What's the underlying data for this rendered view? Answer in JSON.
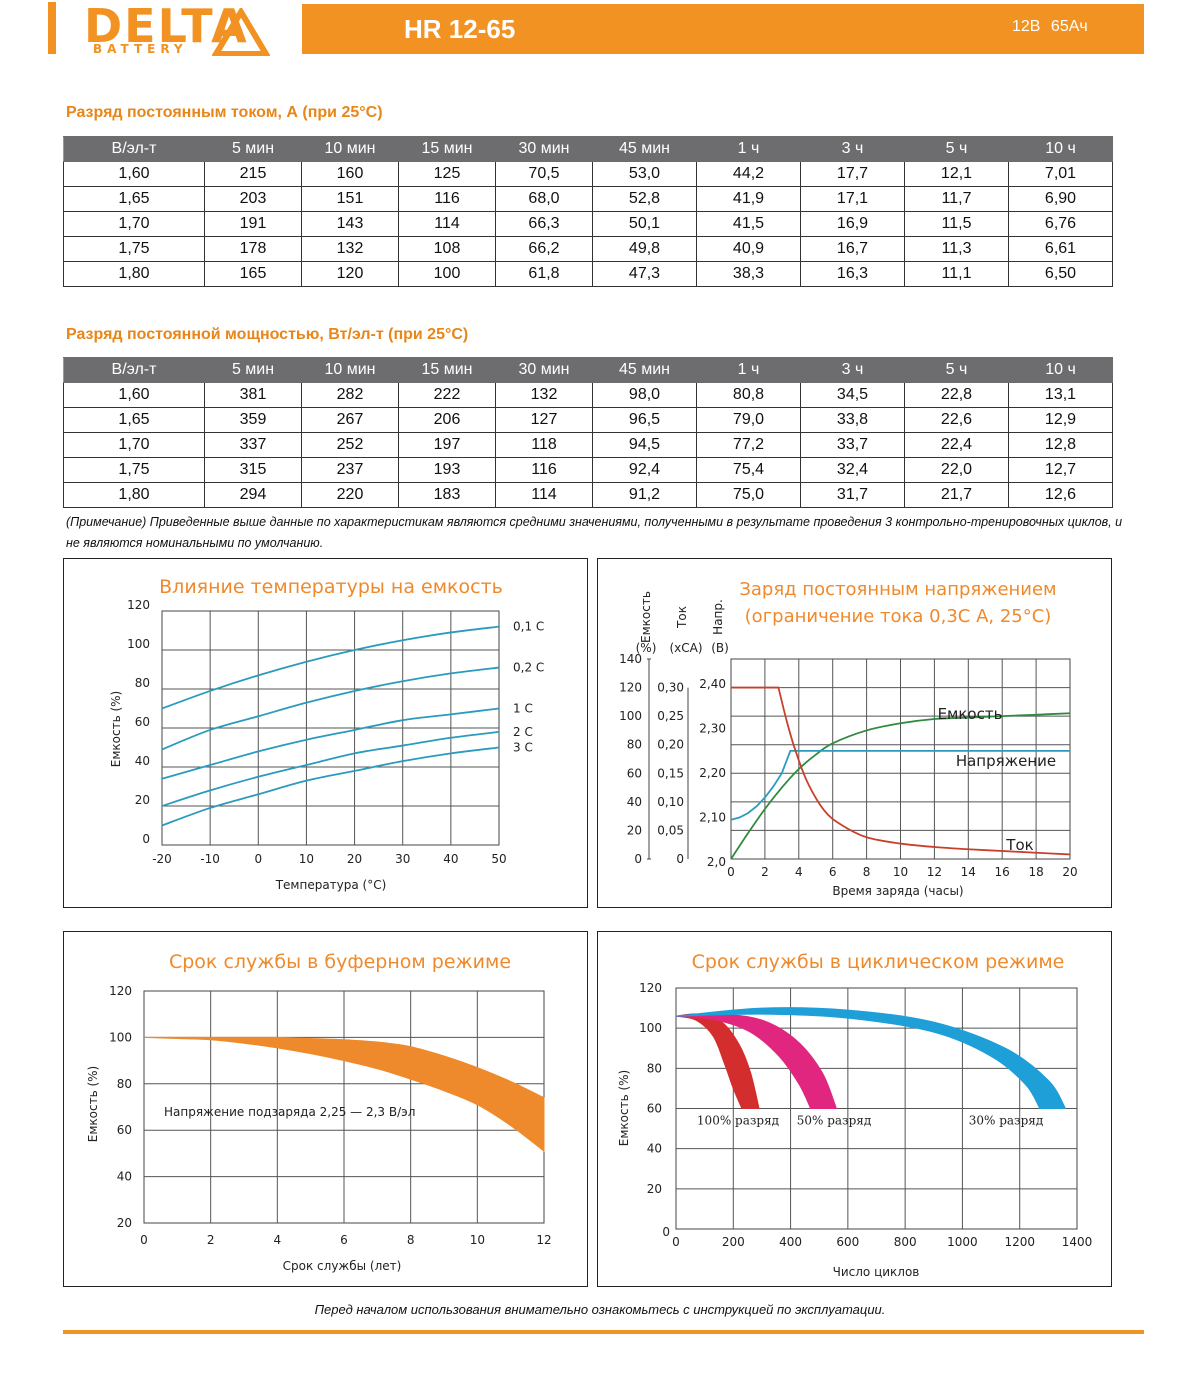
{
  "header": {
    "brand": "DELTA",
    "brand_sub": "BATTERY",
    "model": "HR 12-65",
    "spec": "12В  65Ач",
    "accent_color": "#f29222"
  },
  "table_current": {
    "title": "Разряд постоянным током, А (при 25°С)",
    "headers": [
      "В/эл-т",
      "5 мин",
      "10 мин",
      "15 мин",
      "30 мин",
      "45 мин",
      "1 ч",
      "3 ч",
      "5 ч",
      "10 ч"
    ],
    "rows": [
      [
        "1,60",
        "215",
        "160",
        "125",
        "70,5",
        "53,0",
        "44,2",
        "17,7",
        "12,1",
        "7,01"
      ],
      [
        "1,65",
        "203",
        "151",
        "116",
        "68,0",
        "52,8",
        "41,9",
        "17,1",
        "11,7",
        "6,90"
      ],
      [
        "1,70",
        "191",
        "143",
        "114",
        "66,3",
        "50,1",
        "41,5",
        "16,9",
        "11,5",
        "6,76"
      ],
      [
        "1,75",
        "178",
        "132",
        "108",
        "66,2",
        "49,8",
        "40,9",
        "16,7",
        "11,3",
        "6,61"
      ],
      [
        "1,80",
        "165",
        "120",
        "100",
        "61,8",
        "47,3",
        "38,3",
        "16,3",
        "11,1",
        "6,50"
      ]
    ]
  },
  "table_power": {
    "title": "Разряд постоянной мощностью, Вт/эл-т (при 25°С)",
    "headers": [
      "В/эл-т",
      "5 мин",
      "10 мин",
      "15 мин",
      "30 мин",
      "45 мин",
      "1 ч",
      "3 ч",
      "5 ч",
      "10 ч"
    ],
    "rows": [
      [
        "1,60",
        "381",
        "282",
        "222",
        "132",
        "98,0",
        "80,8",
        "34,5",
        "22,8",
        "13,1"
      ],
      [
        "1,65",
        "359",
        "267",
        "206",
        "127",
        "96,5",
        "79,0",
        "33,8",
        "22,6",
        "12,9"
      ],
      [
        "1,70",
        "337",
        "252",
        "197",
        "118",
        "94,5",
        "77,2",
        "33,7",
        "22,4",
        "12,8"
      ],
      [
        "1,75",
        "315",
        "237",
        "193",
        "116",
        "92,4",
        "75,4",
        "32,4",
        "22,0",
        "12,7"
      ],
      [
        "1,80",
        "294",
        "220",
        "183",
        "114",
        "91,2",
        "75,0",
        "31,7",
        "21,7",
        "12,6"
      ]
    ]
  },
  "note": "(Примечание) Приведенные выше данные по характеристикам являются средними значениями, полученными в результате проведения 3 контрольно-тренировочных циклов, и не являются номинальными по умолчанию.",
  "chart_data": [
    {
      "type": "line",
      "title": "Влияние температуры на емкость",
      "xlabel": "Температура (°С)",
      "ylabel": "Емкость (%)",
      "x_ticks": [
        "-20",
        "-10",
        "0",
        "10",
        "20",
        "30",
        "40",
        "50"
      ],
      "y_ticks": [
        "0",
        "20",
        "40",
        "60",
        "80",
        "100",
        "120"
      ],
      "xlim": [
        -20,
        50
      ],
      "ylim": [
        0,
        120
      ],
      "grid": true,
      "color": "#2a9bbf",
      "x": [
        -20,
        -10,
        0,
        10,
        20,
        30,
        40,
        50
      ],
      "series": [
        {
          "name": "0,1 С",
          "values": [
            70,
            79,
            87,
            94,
            100,
            105,
            109,
            112
          ]
        },
        {
          "name": "0,2 С",
          "values": [
            49,
            59,
            66,
            73,
            79,
            84,
            88,
            91
          ]
        },
        {
          "name": "1 С",
          "values": [
            34,
            41,
            48,
            54,
            59,
            64,
            67,
            70
          ]
        },
        {
          "name": "2 С",
          "values": [
            20,
            28,
            35,
            41,
            47,
            51,
            55,
            58
          ]
        },
        {
          "name": "3 С",
          "values": [
            10,
            19,
            26,
            33,
            38,
            43,
            47,
            50
          ]
        }
      ]
    },
    {
      "type": "line",
      "title": "Заряд постоянным напряжением",
      "subtitle": "(ограничение тока 0,3С А, 25°С)",
      "xlabel": "Время заряда (часы)",
      "axis_labels": [
        "Емкость",
        "Ток",
        "Напр."
      ],
      "axis_units": [
        "(%)",
        "(хСА)",
        "(В)"
      ],
      "x_ticks": [
        "0",
        "2",
        "4",
        "6",
        "8",
        "10",
        "12",
        "14",
        "16",
        "18",
        "20"
      ],
      "y_ticks_capacity": [
        "0",
        "20",
        "40",
        "60",
        "80",
        "100",
        "120",
        "140"
      ],
      "y_ticks_current": [
        "0",
        "0,05",
        "0,10",
        "0,15",
        "0,20",
        "0,25",
        "0,30"
      ],
      "y_ticks_voltage": [
        "2,0",
        "2,10",
        "2,20",
        "2,30",
        "2,40"
      ],
      "xlim": [
        0,
        20
      ],
      "grid": true,
      "series": [
        {
          "name": "Емкость",
          "axis": "capacity",
          "color": "#2e8b3e",
          "x": [
            0,
            1,
            2,
            3,
            4,
            5,
            6,
            8,
            10,
            12,
            14,
            16,
            18,
            20
          ],
          "values": [
            0,
            18,
            35,
            50,
            63,
            73,
            81,
            90,
            95,
            98,
            99,
            100,
            101,
            102
          ]
        },
        {
          "name": "Напряжение",
          "axis": "voltage",
          "color": "#2a9bbf",
          "x": [
            0,
            0.5,
            1,
            1.5,
            2,
            2.5,
            3,
            3.5,
            4,
            6,
            8,
            10,
            12,
            14,
            16,
            18,
            20
          ],
          "values": [
            2.095,
            2.1,
            2.11,
            2.125,
            2.145,
            2.17,
            2.2,
            2.25,
            2.25,
            2.25,
            2.25,
            2.25,
            2.25,
            2.25,
            2.25,
            2.25,
            2.25
          ]
        },
        {
          "name": "Ток",
          "axis": "current",
          "color": "#c8402c",
          "x": [
            0,
            2.8,
            3.3,
            3.8,
            4.5,
            5.5,
            6.5,
            8,
            10,
            12,
            14,
            16,
            18,
            20
          ],
          "values": [
            0.3,
            0.3,
            0.24,
            0.19,
            0.135,
            0.085,
            0.06,
            0.038,
            0.027,
            0.021,
            0.017,
            0.014,
            0.011,
            0.008
          ]
        }
      ]
    },
    {
      "type": "area",
      "title": "Срок службы в буферном режиме",
      "xlabel": "Срок службы (лет)",
      "ylabel": "Емкость (%)",
      "annotation": "Напряжение подзаряда 2,25 — 2,3 В/эл",
      "x_ticks": [
        "0",
        "2",
        "4",
        "6",
        "8",
        "10",
        "12"
      ],
      "y_ticks": [
        "20",
        "40",
        "60",
        "80",
        "100",
        "120"
      ],
      "xlim": [
        0,
        12
      ],
      "ylim": [
        20,
        120
      ],
      "grid": true,
      "color": "#ef8a2c",
      "x": [
        0,
        1,
        2,
        3,
        4,
        5,
        6,
        7,
        8,
        9,
        10,
        11,
        12
      ],
      "upper": [
        100,
        100,
        100,
        100,
        100,
        99.5,
        99,
        98,
        96,
        92,
        87,
        81,
        74
      ],
      "lower": [
        100,
        99.5,
        99,
        97.5,
        95.5,
        93,
        90,
        86.5,
        82,
        77,
        71,
        62,
        51
      ]
    },
    {
      "type": "area",
      "title": "Срок службы в циклическом режиме",
      "xlabel": "Число циклов",
      "ylabel": "Емкость (%)",
      "x_ticks": [
        "0",
        "200",
        "400",
        "600",
        "800",
        "1000",
        "1200",
        "1400"
      ],
      "y_ticks": [
        "20",
        "40",
        "60",
        "80",
        "100",
        "120"
      ],
      "xlim": [
        0,
        1400
      ],
      "ylim": [
        0,
        120
      ],
      "grid": true,
      "series": [
        {
          "name": "100% разряд",
          "color": "#d42d2d",
          "outer": [
            [
              0,
              106
            ],
            [
              80,
              107
            ],
            [
              160,
              103
            ],
            [
              220,
              92
            ],
            [
              260,
              78
            ],
            [
              290,
              60
            ]
          ],
          "inner": [
            [
              0,
              106
            ],
            [
              70,
              104
            ],
            [
              130,
              96
            ],
            [
              170,
              82
            ],
            [
              200,
              70
            ],
            [
              230,
              60
            ]
          ]
        },
        {
          "name": "50% разряд",
          "color": "#e0267f",
          "outer": [
            [
              0,
              106
            ],
            [
              150,
              107
            ],
            [
              300,
              104
            ],
            [
              420,
              94
            ],
            [
              510,
              78
            ],
            [
              560,
              60
            ]
          ],
          "inner": [
            [
              0,
              106
            ],
            [
              140,
              104
            ],
            [
              260,
              98
            ],
            [
              360,
              86
            ],
            [
              430,
              72
            ],
            [
              470,
              60
            ]
          ]
        },
        {
          "name": "30% разряд",
          "color": "#1e9fd8",
          "outer": [
            [
              0,
              106
            ],
            [
              300,
              110
            ],
            [
              600,
              109
            ],
            [
              900,
              103
            ],
            [
              1150,
              90
            ],
            [
              1300,
              74
            ],
            [
              1360,
              60
            ]
          ],
          "inner": [
            [
              0,
              106
            ],
            [
              300,
              107
            ],
            [
              600,
              105
            ],
            [
              900,
              98
            ],
            [
              1100,
              86
            ],
            [
              1220,
              72
            ],
            [
              1270,
              60
            ]
          ]
        }
      ]
    }
  ],
  "footer_note": "Перед началом использования внимательно ознакомьтесь с инструкцией по эксплуатации."
}
